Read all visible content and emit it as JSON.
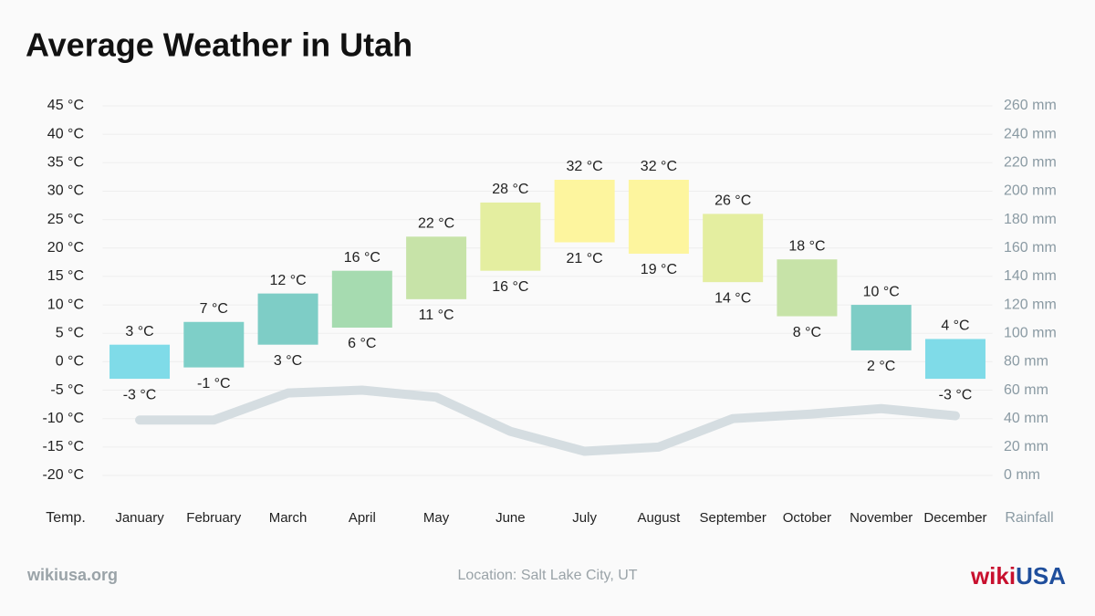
{
  "chart_data": {
    "type": "range-bar",
    "title": "Average Weather in Utah",
    "categories": [
      "January",
      "February",
      "March",
      "April",
      "May",
      "June",
      "July",
      "August",
      "September",
      "October",
      "November",
      "December"
    ],
    "highs": {
      "values": [
        3,
        7,
        12,
        16,
        22,
        28,
        32,
        32,
        26,
        18,
        10,
        4
      ],
      "value_labels": [
        "3 °C",
        "7 °C",
        "12 °C",
        "16 °C",
        "22 °C",
        "28 °C",
        "32 °C",
        "32 °C",
        "26 °C",
        "18 °C",
        "10 °C",
        "4 °C"
      ]
    },
    "lows": {
      "values": [
        -3,
        -1,
        3,
        6,
        11,
        16,
        21,
        19,
        14,
        8,
        2,
        -3
      ],
      "value_labels": [
        "-3 °C",
        "-1 °C",
        "3 °C",
        "6 °C",
        "11 °C",
        "16 °C",
        "21 °C",
        "19 °C",
        "14 °C",
        "8 °C",
        "2 °C",
        "-3 °C"
      ]
    },
    "colors": [
      "#7fdbe8",
      "#7ecfc8",
      "#7ecdc6",
      "#a6dbb0",
      "#c7e3a8",
      "#e4eea0",
      "#fdf59e",
      "#fdf59e",
      "#e4eea0",
      "#c7e3a8",
      "#7ecdc6",
      "#7fdbe8"
    ],
    "rainfall": {
      "values": [
        39,
        39,
        58,
        60,
        55,
        31,
        17,
        20,
        40,
        43,
        47,
        42
      ],
      "color": "#d5dde1",
      "axis": "y2"
    },
    "ylabel": "Temp.",
    "y2label": "Rainfall",
    "ylim": [
      -20,
      45
    ],
    "yticks": [
      {
        "value": 45,
        "label": "45 °C"
      },
      {
        "value": 40,
        "label": "40 °C"
      },
      {
        "value": 35,
        "label": "35 °C"
      },
      {
        "value": 30,
        "label": "30 °C"
      },
      {
        "value": 25,
        "label": "25 °C"
      },
      {
        "value": 20,
        "label": "20 °C"
      },
      {
        "value": 15,
        "label": "15 °C"
      },
      {
        "value": 10,
        "label": "10 °C"
      },
      {
        "value": 5,
        "label": "5 °C"
      },
      {
        "value": 0,
        "label": "0 °C"
      },
      {
        "value": -5,
        "label": "-5 °C"
      },
      {
        "value": -10,
        "label": "-10 °C"
      },
      {
        "value": -15,
        "label": "-15 °C"
      },
      {
        "value": -20,
        "label": "-20 °C"
      }
    ],
    "y2lim": [
      0,
      260
    ],
    "y2ticks": [
      {
        "value": 260,
        "label": "260 mm"
      },
      {
        "value": 240,
        "label": "240 mm"
      },
      {
        "value": 220,
        "label": "220 mm"
      },
      {
        "value": 200,
        "label": "200 mm"
      },
      {
        "value": 180,
        "label": "180 mm"
      },
      {
        "value": 160,
        "label": "160 mm"
      },
      {
        "value": 140,
        "label": "140 mm"
      },
      {
        "value": 120,
        "label": "120 mm"
      },
      {
        "value": 100,
        "label": "100 mm"
      },
      {
        "value": 80,
        "label": "80 mm"
      },
      {
        "value": 60,
        "label": "60 mm"
      },
      {
        "value": 40,
        "label": "40 mm"
      },
      {
        "value": 20,
        "label": "20 mm"
      },
      {
        "value": 0,
        "label": "0 mm"
      }
    ],
    "grid": true,
    "source": "wikiusa.org",
    "location": "Location: Salt Lake City, UT",
    "logo": [
      "wiki",
      "USA"
    ]
  }
}
